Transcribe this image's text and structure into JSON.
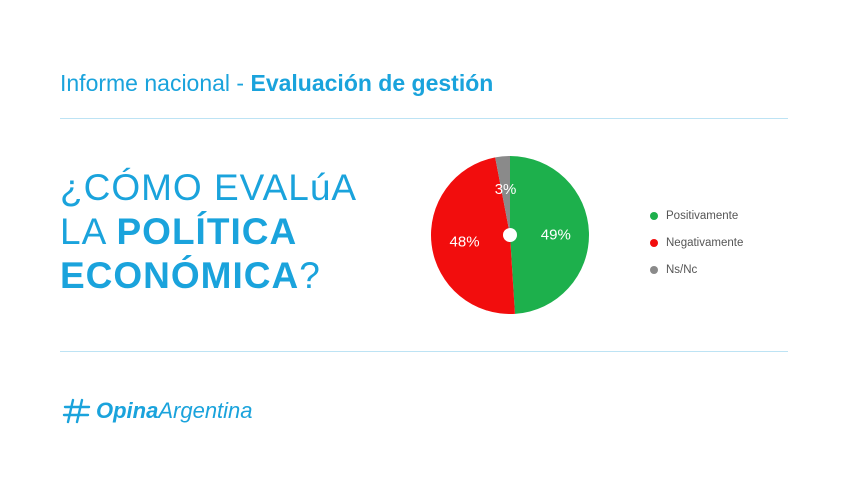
{
  "header": {
    "prefix": "Informe nacional - ",
    "bold": "Evaluación de gestión"
  },
  "question": {
    "line1": "¿CÓMO EVALúA",
    "line2_plain": "LA ",
    "line2_bold": "POLÍTICA",
    "line3_bold": "ECONÓMICA",
    "line3_plain": "?"
  },
  "chart_data": {
    "type": "pie",
    "slices": [
      {
        "label": "Positivamente",
        "value": 49,
        "display": "49%",
        "color": "#1db04c"
      },
      {
        "label": "Negativamente",
        "value": 48,
        "display": "48%",
        "color": "#f20d0d"
      },
      {
        "label": "Ns/Nc",
        "value": 3,
        "display": "3%",
        "color": "#8a8a8a"
      }
    ],
    "legend_position": "right"
  },
  "legend": {
    "items": [
      {
        "label": "Positivamente",
        "color": "#1db04c"
      },
      {
        "label": "Negativamente",
        "color": "#f20d0d"
      },
      {
        "label": "Ns/Nc",
        "color": "#8a8a8a"
      }
    ]
  },
  "logo": {
    "icon": "hash-icon",
    "bold": "Opina",
    "regular": "Argentina"
  },
  "colors": {
    "accent": "#1aa3dc"
  }
}
